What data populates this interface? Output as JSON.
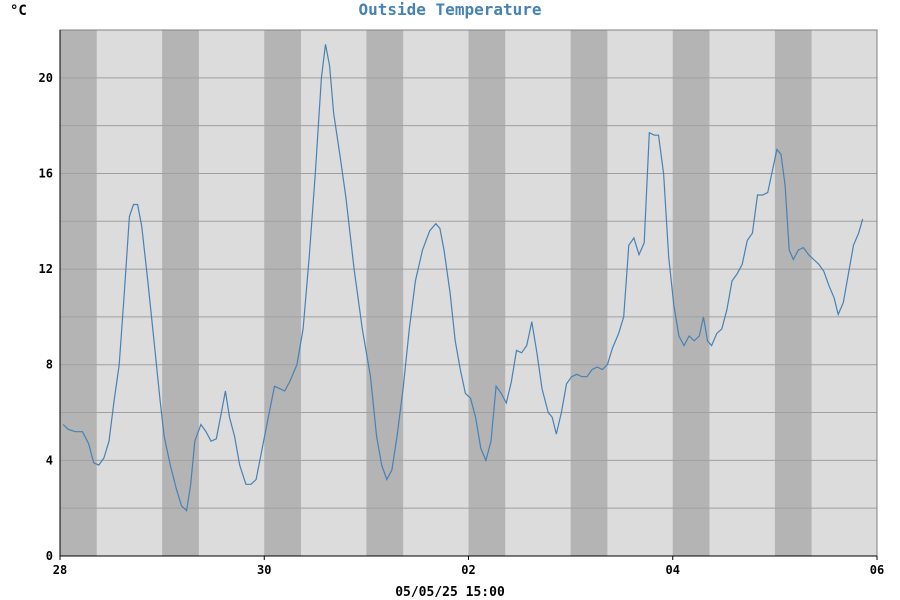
{
  "header": {
    "title": "Outside Temperature",
    "unit": "°C"
  },
  "footer": {
    "timestamp": "05/05/25 15:00"
  },
  "colors": {
    "background": "#ffffff",
    "plot_bg": "#dcdcdc",
    "night_band": "#b4b4b4",
    "grid": "#a0a0a0",
    "series_line": "#4682b4",
    "title": "#4682b4"
  },
  "chart_data": {
    "type": "line",
    "title": "Outside Temperature",
    "xlabel": "",
    "ylabel": "°C",
    "x_unit": "day",
    "x_start": "2025-04-28",
    "xlim": [
      0,
      9
    ],
    "ylim": [
      0,
      22
    ],
    "y_ticks": [
      0,
      4,
      8,
      12,
      16,
      20
    ],
    "y_gridlines": [
      2,
      4,
      6,
      8,
      10,
      12,
      14,
      16,
      18,
      20
    ],
    "x_ticks": [
      {
        "value": 0,
        "label": "28"
      },
      {
        "value": 2,
        "label": "30"
      },
      {
        "value": 4,
        "label": "02"
      },
      {
        "value": 6,
        "label": "04"
      },
      {
        "value": 8,
        "label": "06"
      }
    ],
    "night_bands": [
      [
        0.0,
        0.36
      ],
      [
        1.0,
        1.36
      ],
      [
        2.0,
        2.36
      ],
      [
        3.0,
        3.36
      ],
      [
        4.0,
        4.36
      ],
      [
        5.0,
        5.36
      ],
      [
        6.0,
        6.36
      ],
      [
        7.0,
        7.36
      ]
    ],
    "grid": true,
    "series": [
      {
        "points": [
          [
            0.03,
            5.5
          ],
          [
            0.08,
            5.3
          ],
          [
            0.15,
            5.2
          ],
          [
            0.22,
            5.2
          ],
          [
            0.28,
            4.7
          ],
          [
            0.33,
            3.9
          ],
          [
            0.38,
            3.8
          ],
          [
            0.43,
            4.1
          ],
          [
            0.48,
            4.8
          ],
          [
            0.53,
            6.5
          ],
          [
            0.58,
            8.0
          ],
          [
            0.63,
            11.0
          ],
          [
            0.68,
            14.2
          ],
          [
            0.72,
            14.7
          ],
          [
            0.76,
            14.7
          ],
          [
            0.8,
            13.8
          ],
          [
            0.86,
            11.5
          ],
          [
            0.92,
            9.0
          ],
          [
            0.98,
            6.5
          ],
          [
            1.02,
            5.0
          ],
          [
            1.08,
            3.8
          ],
          [
            1.14,
            2.8
          ],
          [
            1.19,
            2.1
          ],
          [
            1.24,
            1.9
          ],
          [
            1.28,
            3.0
          ],
          [
            1.32,
            4.8
          ],
          [
            1.38,
            5.5
          ],
          [
            1.43,
            5.2
          ],
          [
            1.48,
            4.8
          ],
          [
            1.53,
            4.9
          ],
          [
            1.58,
            6.0
          ],
          [
            1.62,
            6.9
          ],
          [
            1.66,
            5.8
          ],
          [
            1.71,
            5.0
          ],
          [
            1.76,
            3.8
          ],
          [
            1.82,
            3.0
          ],
          [
            1.87,
            3.0
          ],
          [
            1.92,
            3.2
          ],
          [
            1.98,
            4.5
          ],
          [
            2.04,
            5.8
          ],
          [
            2.1,
            7.1
          ],
          [
            2.15,
            7.0
          ],
          [
            2.2,
            6.9
          ],
          [
            2.25,
            7.3
          ],
          [
            2.32,
            8.0
          ],
          [
            2.38,
            9.5
          ],
          [
            2.44,
            12.5
          ],
          [
            2.5,
            16.0
          ],
          [
            2.56,
            20.0
          ],
          [
            2.6,
            21.4
          ],
          [
            2.64,
            20.5
          ],
          [
            2.68,
            18.5
          ],
          [
            2.74,
            16.8
          ],
          [
            2.8,
            15.0
          ],
          [
            2.88,
            12.0
          ],
          [
            2.96,
            9.5
          ],
          [
            3.04,
            7.5
          ],
          [
            3.1,
            5.0
          ],
          [
            3.15,
            3.8
          ],
          [
            3.2,
            3.2
          ],
          [
            3.25,
            3.6
          ],
          [
            3.3,
            5.0
          ],
          [
            3.36,
            7.0
          ],
          [
            3.42,
            9.5
          ],
          [
            3.48,
            11.5
          ],
          [
            3.55,
            12.8
          ],
          [
            3.62,
            13.6
          ],
          [
            3.68,
            13.9
          ],
          [
            3.72,
            13.7
          ],
          [
            3.76,
            12.8
          ],
          [
            3.82,
            11.0
          ],
          [
            3.87,
            9.0
          ],
          [
            3.92,
            7.8
          ],
          [
            3.97,
            6.8
          ],
          [
            4.02,
            6.6
          ],
          [
            4.07,
            5.8
          ],
          [
            4.12,
            4.5
          ],
          [
            4.17,
            4.0
          ],
          [
            4.22,
            4.8
          ],
          [
            4.27,
            7.1
          ],
          [
            4.32,
            6.8
          ],
          [
            4.37,
            6.4
          ],
          [
            4.42,
            7.3
          ],
          [
            4.47,
            8.6
          ],
          [
            4.52,
            8.5
          ],
          [
            4.57,
            8.8
          ],
          [
            4.62,
            9.8
          ],
          [
            4.67,
            8.5
          ],
          [
            4.72,
            7.0
          ],
          [
            4.78,
            6.0
          ],
          [
            4.82,
            5.8
          ],
          [
            4.86,
            5.1
          ],
          [
            4.91,
            6.0
          ],
          [
            4.96,
            7.2
          ],
          [
            5.01,
            7.5
          ],
          [
            5.06,
            7.6
          ],
          [
            5.11,
            7.5
          ],
          [
            5.16,
            7.5
          ],
          [
            5.21,
            7.8
          ],
          [
            5.26,
            7.9
          ],
          [
            5.31,
            7.8
          ],
          [
            5.36,
            8.0
          ],
          [
            5.41,
            8.7
          ],
          [
            5.47,
            9.3
          ],
          [
            5.52,
            10.0
          ],
          [
            5.57,
            13.0
          ],
          [
            5.62,
            13.3
          ],
          [
            5.67,
            12.6
          ],
          [
            5.72,
            13.1
          ],
          [
            5.77,
            17.7
          ],
          [
            5.82,
            17.6
          ],
          [
            5.86,
            17.6
          ],
          [
            5.91,
            16.0
          ],
          [
            5.96,
            12.5
          ],
          [
            6.01,
            10.5
          ],
          [
            6.06,
            9.2
          ],
          [
            6.11,
            8.8
          ],
          [
            6.16,
            9.2
          ],
          [
            6.21,
            9.0
          ],
          [
            6.26,
            9.2
          ],
          [
            6.3,
            10.0
          ],
          [
            6.34,
            9.0
          ],
          [
            6.38,
            8.8
          ],
          [
            6.43,
            9.3
          ],
          [
            6.48,
            9.5
          ],
          [
            6.53,
            10.3
          ],
          [
            6.58,
            11.5
          ],
          [
            6.63,
            11.8
          ],
          [
            6.68,
            12.2
          ],
          [
            6.73,
            13.2
          ],
          [
            6.78,
            13.5
          ],
          [
            6.83,
            15.1
          ],
          [
            6.88,
            15.1
          ],
          [
            6.93,
            15.2
          ],
          [
            6.98,
            16.2
          ],
          [
            7.02,
            17.0
          ],
          [
            7.06,
            16.8
          ],
          [
            7.1,
            15.5
          ],
          [
            7.14,
            12.8
          ],
          [
            7.18,
            12.4
          ],
          [
            7.23,
            12.8
          ],
          [
            7.28,
            12.9
          ],
          [
            7.33,
            12.6
          ],
          [
            7.38,
            12.4
          ],
          [
            7.43,
            12.2
          ],
          [
            7.48,
            11.9
          ],
          [
            7.53,
            11.3
          ],
          [
            7.58,
            10.8
          ],
          [
            7.62,
            10.1
          ],
          [
            7.67,
            10.6
          ],
          [
            7.72,
            11.8
          ],
          [
            7.77,
            13.0
          ],
          [
            7.82,
            13.5
          ],
          [
            7.86,
            14.1
          ]
        ]
      }
    ]
  }
}
